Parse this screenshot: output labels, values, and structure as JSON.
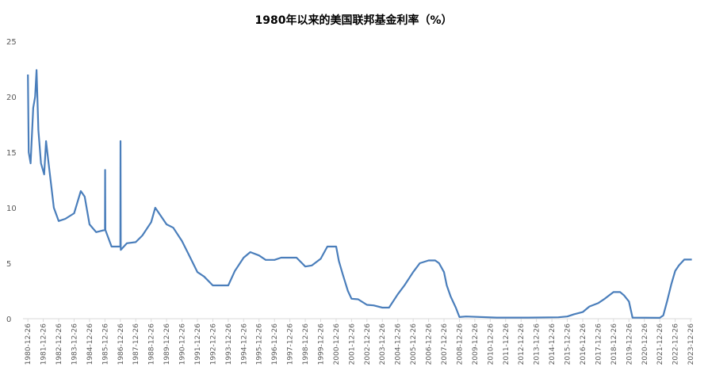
{
  "chart_data": {
    "type": "line",
    "title": "1980年以来的美国联邦基金利率（%）",
    "x": [
      "1980-12-26",
      "1981-01-15",
      "1981-03-01",
      "1981-05-01",
      "1981-06-15",
      "1981-07-20",
      "1981-09-01",
      "1981-11-01",
      "1982-01-15",
      "1982-03-01",
      "1982-05-01",
      "1982-07-01",
      "1982-09-01",
      "1982-12-26",
      "1983-06-01",
      "1983-12-26",
      "1984-06-01",
      "1984-09-01",
      "1984-12-26",
      "1985-06-01",
      "1985-12-26",
      "1985-12-31",
      "1986-01-05",
      "1986-06-01",
      "1986-12-26",
      "1986-12-30",
      "1987-01-05",
      "1987-06-01",
      "1987-12-26",
      "1988-06-01",
      "1988-12-26",
      "1989-04-01",
      "1989-12-26",
      "1990-06-01",
      "1990-12-26",
      "1991-06-01",
      "1991-12-26",
      "1992-06-01",
      "1992-12-26",
      "1993-06-01",
      "1993-12-26",
      "1994-06-01",
      "1994-12-26",
      "1995-06-01",
      "1995-12-26",
      "1996-06-01",
      "1996-12-26",
      "1997-06-01",
      "1997-12-26",
      "1998-06-01",
      "1998-12-26",
      "1999-06-01",
      "1999-12-26",
      "2000-06-01",
      "2000-12-26",
      "2001-03-01",
      "2001-06-01",
      "2001-10-01",
      "2001-12-26",
      "2002-06-01",
      "2002-12-26",
      "2003-06-01",
      "2003-12-26",
      "2004-06-01",
      "2004-12-26",
      "2005-06-01",
      "2005-12-26",
      "2006-06-01",
      "2006-12-26",
      "2007-06-01",
      "2007-09-01",
      "2007-12-26",
      "2008-03-01",
      "2008-06-01",
      "2008-10-01",
      "2008-12-26",
      "2009-06-01",
      "2011-06-01",
      "2013-06-01",
      "2015-06-01",
      "2015-12-26",
      "2016-06-01",
      "2016-12-26",
      "2017-06-01",
      "2017-12-26",
      "2018-06-01",
      "2018-12-26",
      "2019-06-01",
      "2019-09-01",
      "2019-12-26",
      "2020-03-20",
      "2021-12-26",
      "2022-03-20",
      "2022-06-20",
      "2022-09-25",
      "2022-12-26",
      "2023-03-25",
      "2023-07-30",
      "2024-01-25"
    ],
    "series": [
      {
        "name": "联邦基金利率",
        "color": "#4a7ebb",
        "values": [
          22,
          15,
          14,
          19,
          20,
          22.4,
          17,
          14,
          13,
          16,
          14,
          12,
          10,
          8.8,
          9,
          9.5,
          11.5,
          11,
          8.5,
          7.8,
          8,
          13.4,
          8,
          6.5,
          6.5,
          16,
          6.2,
          6.8,
          6.9,
          7.5,
          8.7,
          10,
          8.5,
          8.2,
          7,
          5.8,
          4.2,
          3.8,
          3,
          3,
          3,
          4.3,
          5.5,
          6,
          5.7,
          5.3,
          5.3,
          5.5,
          5.5,
          5.5,
          4.7,
          4.8,
          5.4,
          6.5,
          6.5,
          5.2,
          4,
          2.5,
          1.8,
          1.75,
          1.25,
          1.2,
          1,
          1,
          2.2,
          3,
          4.2,
          5,
          5.25,
          5.25,
          5,
          4.2,
          3,
          2,
          1,
          0.15,
          0.2,
          0.1,
          0.1,
          0.13,
          0.2,
          0.4,
          0.6,
          1.1,
          1.4,
          1.8,
          2.4,
          2.4,
          2.1,
          1.55,
          0.1,
          0.08,
          0.3,
          1.6,
          3.1,
          4.3,
          4.8,
          5.33,
          5.33
        ]
      }
    ],
    "xlim": [
      "1980-09-01",
      "2024-02-01"
    ],
    "xticks": [
      "1980-12-26",
      "1981-12-26",
      "1982-12-26",
      "1983-12-26",
      "1984-12-26",
      "1985-12-26",
      "1986-12-26",
      "1987-12-26",
      "1988-12-26",
      "1989-12-26",
      "1990-12-26",
      "1991-12-26",
      "1992-12-26",
      "1993-12-26",
      "1994-12-26",
      "1995-12-26",
      "1996-12-26",
      "1997-12-26",
      "1998-12-26",
      "1999-12-26",
      "2000-12-26",
      "2001-12-26",
      "2002-12-26",
      "2003-12-26",
      "2004-12-26",
      "2005-12-26",
      "2006-12-26",
      "2007-12-26",
      "2008-12-26",
      "2009-12-26",
      "2010-12-26",
      "2011-12-26",
      "2012-12-26",
      "2013-12-26",
      "2014-12-26",
      "2015-12-26",
      "2016-12-26",
      "2017-12-26",
      "2018-12-26",
      "2019-12-26",
      "2020-12-26",
      "2021-12-26",
      "2022-12-26",
      "2023-12-26"
    ],
    "ylim": [
      0,
      25
    ],
    "yticks": [
      0,
      5,
      10,
      15,
      20,
      25
    ],
    "grid": false
  }
}
